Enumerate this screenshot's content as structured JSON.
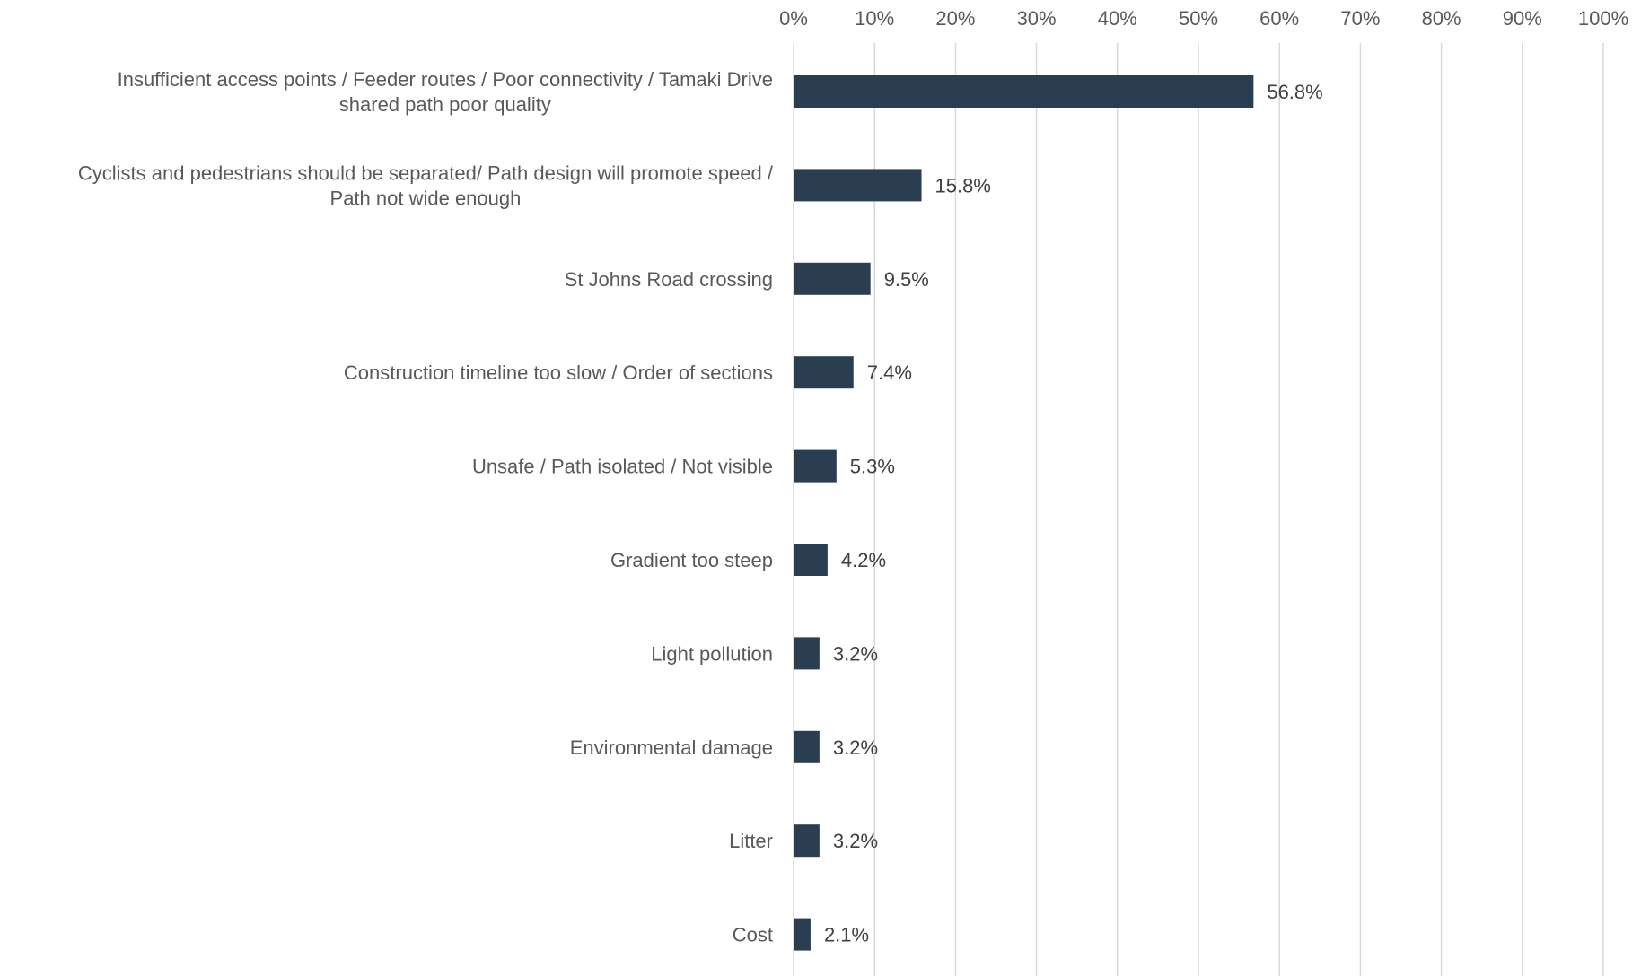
{
  "chart_data": {
    "type": "bar",
    "orientation": "horizontal",
    "categories": [
      "Insufficient access points / Feeder routes / Poor connectivity / Tamaki Drive shared path poor quality",
      "Cyclists and pedestrians should be separated/ Path design will promote speed / Path not wide enough",
      "St Johns Road crossing",
      "Construction timeline too slow / Order of sections",
      "Unsafe / Path isolated / Not visible",
      "Gradient too steep",
      "Light pollution",
      "Environmental damage",
      "Litter",
      "Cost"
    ],
    "category_lines": [
      [
        "Insufficient access points / Feeder routes / Poor connectivity / Tamaki Drive",
        "shared path poor quality"
      ],
      [
        "Cyclists and pedestrians should be separated/ Path design will promote speed /",
        "Path not wide enough"
      ],
      [
        "St Johns Road crossing"
      ],
      [
        "Construction timeline too slow / Order of sections"
      ],
      [
        "Unsafe / Path isolated / Not visible"
      ],
      [
        "Gradient too steep"
      ],
      [
        "Light pollution"
      ],
      [
        "Environmental damage"
      ],
      [
        "Litter"
      ],
      [
        "Cost"
      ]
    ],
    "values": [
      56.8,
      15.8,
      9.5,
      7.4,
      5.3,
      4.2,
      3.2,
      3.2,
      3.2,
      2.1
    ],
    "value_labels": [
      "56.8%",
      "15.8%",
      "9.5%",
      "7.4%",
      "5.3%",
      "4.2%",
      "3.2%",
      "3.2%",
      "3.2%",
      "2.1%"
    ],
    "x_ticks": [
      "0%",
      "10%",
      "20%",
      "30%",
      "40%",
      "50%",
      "60%",
      "70%",
      "80%",
      "90%",
      "100%"
    ],
    "xlim": [
      0,
      100
    ],
    "x_axis_position": "top",
    "grid": true,
    "legend": "none",
    "title": "",
    "xlabel": "",
    "ylabel": "",
    "colors": {
      "bar": "#2b3d51",
      "grid": "#d9d9d9"
    }
  }
}
